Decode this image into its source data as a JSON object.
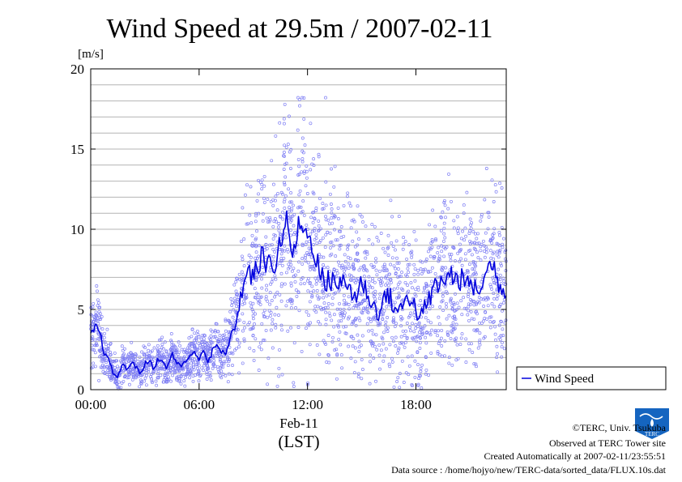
{
  "chart_data": {
    "type": "scatter",
    "title": "Wind Speed at 29.5m / 2007-02-11",
    "y_unit": "[m/s]",
    "ylim": [
      0,
      20
    ],
    "y_ticks": [
      "0",
      "5",
      "10",
      "15",
      "20"
    ],
    "xlim_hours": [
      0,
      23
    ],
    "x_ticks": [
      {
        "hour": 0,
        "label": "00:00"
      },
      {
        "hour": 6,
        "label": "06:00"
      },
      {
        "hour": 12,
        "label": "12:00"
      },
      {
        "hour": 18,
        "label": "18:00"
      }
    ],
    "x_date_label": "Feb-11",
    "x_zone_label": "(LST)",
    "grid": true,
    "legend": {
      "position": "right",
      "label": "Wind Speed"
    },
    "series": [
      {
        "name": "Wind Speed",
        "x_hours": [
          0.0,
          0.25,
          0.5,
          0.75,
          1.0,
          1.25,
          1.5,
          1.75,
          2.0,
          2.25,
          2.5,
          2.75,
          3.0,
          3.25,
          3.5,
          3.75,
          4.0,
          4.25,
          4.5,
          4.75,
          5.0,
          5.25,
          5.5,
          5.75,
          6.0,
          6.25,
          6.5,
          6.75,
          7.0,
          7.25,
          7.5,
          7.75,
          8.0,
          8.25,
          8.5,
          8.75,
          9.0,
          9.25,
          9.5,
          9.75,
          10.0,
          10.25,
          10.5,
          10.75,
          11.0,
          11.25,
          11.5,
          11.75,
          12.0,
          12.25,
          12.5,
          12.75,
          13.0,
          13.25,
          13.5,
          13.75,
          14.0,
          14.25,
          14.5,
          14.75,
          15.0,
          15.25,
          15.5,
          15.75,
          16.0,
          16.25,
          16.5,
          16.75,
          17.0,
          17.25,
          17.5,
          17.75,
          18.0,
          18.25,
          18.5,
          18.75,
          19.0,
          19.25,
          19.5,
          19.75,
          20.0,
          20.25,
          20.5,
          20.75,
          21.0,
          21.25,
          21.5,
          21.75,
          22.0,
          22.25,
          22.5,
          22.75,
          23.0
        ],
        "mean_values": [
          3.3,
          4.0,
          3.5,
          2.3,
          1.8,
          1.0,
          0.8,
          1.6,
          1.2,
          1.8,
          1.4,
          1.0,
          1.6,
          1.8,
          1.3,
          2.0,
          1.6,
          1.4,
          2.2,
          1.7,
          1.5,
          1.8,
          2.0,
          2.3,
          2.0,
          2.5,
          1.7,
          2.4,
          2.8,
          2.2,
          2.4,
          3.2,
          4.0,
          5.5,
          6.8,
          7.4,
          6.9,
          7.8,
          8.3,
          7.5,
          8.2,
          7.8,
          9.2,
          10.6,
          9.5,
          8.4,
          10.0,
          10.5,
          9.2,
          9.4,
          8.2,
          7.0,
          6.6,
          6.8,
          7.1,
          6.3,
          6.8,
          6.5,
          6.0,
          5.8,
          6.8,
          6.2,
          5.5,
          5.0,
          4.8,
          5.7,
          6.0,
          5.2,
          4.9,
          5.0,
          6.1,
          5.6,
          5.0,
          4.4,
          5.1,
          5.6,
          6.5,
          6.3,
          6.9,
          7.0,
          7.2,
          6.8,
          6.9,
          6.5,
          6.8,
          6.2,
          6.4,
          6.6,
          7.6,
          8.0,
          6.8,
          6.5,
          5.8
        ],
        "spread": [
          0.9,
          1.2,
          1.1,
          0.8,
          0.6,
          0.5,
          0.5,
          0.6,
          0.5,
          0.6,
          0.5,
          0.5,
          0.6,
          0.6,
          0.5,
          0.7,
          0.6,
          0.6,
          0.7,
          0.6,
          0.6,
          0.7,
          0.7,
          0.8,
          0.7,
          0.8,
          0.7,
          0.8,
          0.9,
          0.8,
          0.9,
          1.0,
          1.3,
          1.8,
          2.3,
          2.5,
          2.5,
          2.8,
          3.0,
          3.0,
          3.1,
          3.1,
          3.3,
          3.6,
          3.5,
          3.3,
          3.5,
          3.6,
          3.4,
          3.4,
          3.2,
          2.9,
          2.8,
          2.8,
          2.8,
          2.6,
          2.7,
          2.6,
          2.5,
          2.4,
          2.6,
          2.5,
          2.3,
          2.2,
          2.2,
          2.4,
          2.4,
          2.3,
          2.2,
          2.2,
          2.5,
          2.4,
          2.3,
          2.1,
          2.3,
          2.4,
          2.6,
          2.5,
          2.6,
          2.6,
          2.7,
          2.6,
          2.6,
          2.5,
          2.6,
          2.5,
          2.5,
          2.6,
          2.8,
          2.9,
          2.6,
          2.6,
          2.4
        ],
        "max_value": 18.2
      }
    ]
  },
  "footer": {
    "copyright": "©TERC, Univ. Tsukuba",
    "site": "Observed at TERC Tower site",
    "created": "Created Automatically at 2007-02-11/23:55:51",
    "source": "Data source : /home/hojyo/new/TERC-data/sorted_data/FLUX.10s.dat",
    "logo_text": "TERC"
  },
  "colors": {
    "series": "#0000dd",
    "scatter": "#7f7ff4",
    "grid": "#b4b4b4",
    "logo": "#1565c0"
  }
}
